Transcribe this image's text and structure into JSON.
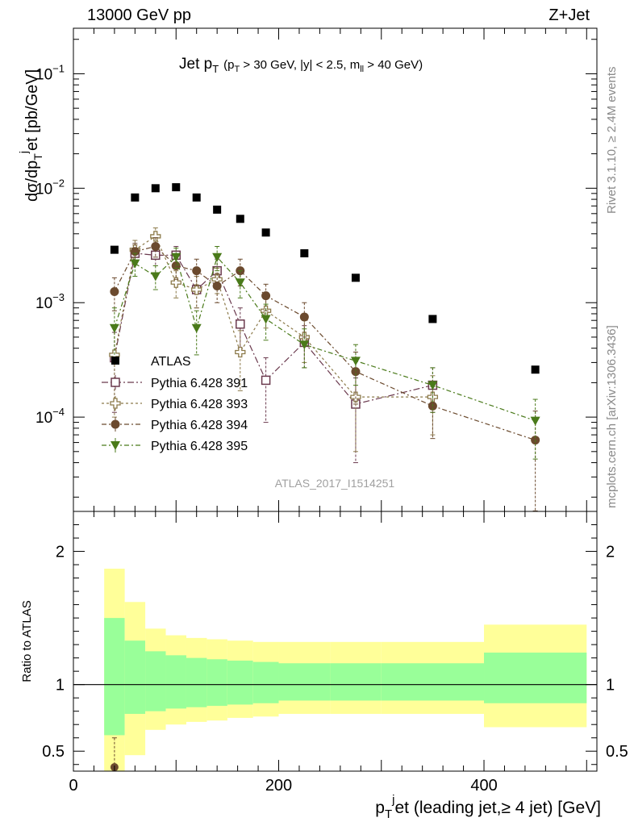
{
  "header": {
    "left": "13000 GeV pp",
    "right": "Z+Jet"
  },
  "side": {
    "rivet": "Rivet 3.1.10, ≥ 2.4M events",
    "mcplots": "mcplots.cern.ch [arXiv:1306.3436]"
  },
  "watermark": "ATLAS_2017_I1514251",
  "colors": {
    "atlas": "#000000",
    "p391": "#6b3a4e",
    "p393": "#8c7a4a",
    "p394": "#6b4a2e",
    "p395": "#4a7a1a",
    "band_inner": "#99ff99",
    "band_outer": "#ffff99"
  },
  "chart_data": {
    "type": "scatter",
    "title": {
      "base": "Jet p",
      "sub": "T",
      "cond": "(p",
      "cond_sub": "T",
      "cond_mid": " > 30 GeV, |y| < 2.5, m",
      "cond_sub2": "ll",
      "cond_end": " > 40 GeV)"
    },
    "ylabel_main": "dσ/dp_T^j et [pb/GeV]",
    "ylabel_ratio": "Ratio to ATLAS",
    "xlabel": "p_T^j et (leading jet,≥ 4 jet) [GeV]",
    "x_scale": "linear",
    "xlim": [
      0,
      510
    ],
    "x_ticks": [
      0,
      200,
      400
    ],
    "y_scale": "log",
    "ylim": [
      1.5e-05,
      0.25
    ],
    "y_ticks": [
      {
        "v": 0.0001,
        "base": "10",
        "exp": "−4"
      },
      {
        "v": 0.001,
        "base": "10",
        "exp": "−3"
      },
      {
        "v": 0.01,
        "base": "10",
        "exp": "−2"
      },
      {
        "v": 0.1,
        "base": "10",
        "exp": "−1"
      }
    ],
    "ratio_ylim": [
      0.35,
      2.3
    ],
    "ratio_ticks": [
      0.5,
      1,
      2
    ],
    "bins": [
      {
        "lo": 30,
        "hi": 50
      },
      {
        "lo": 50,
        "hi": 70
      },
      {
        "lo": 70,
        "hi": 90
      },
      {
        "lo": 90,
        "hi": 110
      },
      {
        "lo": 110,
        "hi": 130
      },
      {
        "lo": 130,
        "hi": 150
      },
      {
        "lo": 150,
        "hi": 175
      },
      {
        "lo": 175,
        "hi": 200
      },
      {
        "lo": 200,
        "hi": 250
      },
      {
        "lo": 250,
        "hi": 300
      },
      {
        "lo": 300,
        "hi": 400
      },
      {
        "lo": 400,
        "hi": 500
      }
    ],
    "atlas": {
      "name": "ATLAS",
      "x": [
        40,
        60,
        80,
        100,
        120,
        140,
        162.5,
        187.5,
        225,
        275,
        350,
        450
      ],
      "y": [
        0.0029,
        0.0083,
        0.01,
        0.0102,
        0.0083,
        0.0065,
        0.0054,
        0.0041,
        0.0027,
        0.00165,
        0.00072,
        0.00026
      ],
      "band_inner": [
        [
          0.62,
          1.5
        ],
        [
          0.78,
          1.33
        ],
        [
          0.8,
          1.25
        ],
        [
          0.82,
          1.22
        ],
        [
          0.83,
          1.2
        ],
        [
          0.84,
          1.19
        ],
        [
          0.85,
          1.18
        ],
        [
          0.86,
          1.17
        ],
        [
          0.88,
          1.16
        ],
        [
          0.88,
          1.16
        ],
        [
          0.88,
          1.16
        ],
        [
          0.86,
          1.24
        ]
      ],
      "band_outer": [
        [
          0.33,
          1.87
        ],
        [
          0.47,
          1.62
        ],
        [
          0.66,
          1.42
        ],
        [
          0.7,
          1.37
        ],
        [
          0.72,
          1.35
        ],
        [
          0.73,
          1.34
        ],
        [
          0.75,
          1.33
        ],
        [
          0.76,
          1.32
        ],
        [
          0.78,
          1.32
        ],
        [
          0.78,
          1.32
        ],
        [
          0.78,
          1.32
        ],
        [
          0.68,
          1.45
        ]
      ]
    },
    "series": [
      {
        "name": "Pythia 6.428 391",
        "marker": "open-square",
        "dash": "8,3,2,3",
        "x": [
          40,
          60,
          80,
          100,
          120,
          140,
          162.5,
          187.5,
          225,
          275,
          350,
          450
        ],
        "y": [
          0.00033,
          0.0027,
          0.0026,
          0.0026,
          0.0013,
          0.0019,
          0.00065,
          0.00021,
          0.00045,
          0.00013,
          0.00019,
          null
        ],
        "yerr": [
          0.00022,
          0.0005,
          0.0005,
          0.0005,
          0.0004,
          0.0005,
          0.00025,
          0.00012,
          0.00018,
          9e-05,
          8e-05,
          null
        ]
      },
      {
        "name": "Pythia 6.428 393",
        "marker": "open-cross",
        "dash": "3,3",
        "x": [
          40,
          60,
          80,
          100,
          120,
          140,
          162.5,
          187.5,
          225,
          275,
          350,
          450
        ],
        "y": [
          0.00035,
          0.0029,
          0.0038,
          0.0015,
          0.0013,
          0.0016,
          0.00037,
          0.00085,
          0.0005,
          0.00015,
          0.00015,
          null
        ],
        "yerr": [
          0.00025,
          0.0006,
          0.0007,
          0.0004,
          0.0004,
          0.0004,
          0.0002,
          0.00025,
          0.0002,
          0.0001,
          8e-05,
          null
        ]
      },
      {
        "name": "Pythia 6.428 394",
        "marker": "filled-circle",
        "dash": "6,3,2,3",
        "x": [
          40,
          60,
          80,
          100,
          120,
          140,
          162.5,
          187.5,
          225,
          275,
          350,
          450
        ],
        "y": [
          0.00125,
          0.0028,
          0.0031,
          0.0021,
          0.0019,
          0.0014,
          0.0019,
          0.00115,
          0.00075,
          0.00025,
          0.000125,
          6.3e-05
        ],
        "yerr": [
          0.0004,
          0.0005,
          0.0006,
          0.0005,
          0.0005,
          0.0004,
          0.0005,
          0.0003,
          0.00025,
          0.00012,
          6e-05,
          5e-05
        ]
      },
      {
        "name": "Pythia 6.428 395",
        "marker": "filled-triangle-down",
        "dash": "6,3,2,3",
        "x": [
          40,
          60,
          80,
          100,
          120,
          140,
          162.5,
          187.5,
          225,
          275,
          350,
          450
        ],
        "y": [
          0.0006,
          0.0022,
          0.0017,
          0.0025,
          0.0006,
          0.0025,
          0.0015,
          0.00072,
          0.00043,
          0.00031,
          0.00019,
          9.3e-05
        ],
        "yerr": [
          0.0003,
          0.0005,
          0.0004,
          0.0005,
          0.00025,
          0.0006,
          0.0004,
          0.00025,
          0.00016,
          0.00012,
          8e-05,
          5e-05
        ]
      }
    ],
    "ratio_points": [
      {
        "series": "Pythia 6.428 394",
        "x": 40,
        "y": 0.38,
        "yerr": 0.22
      }
    ],
    "legend_position": "center-left"
  }
}
